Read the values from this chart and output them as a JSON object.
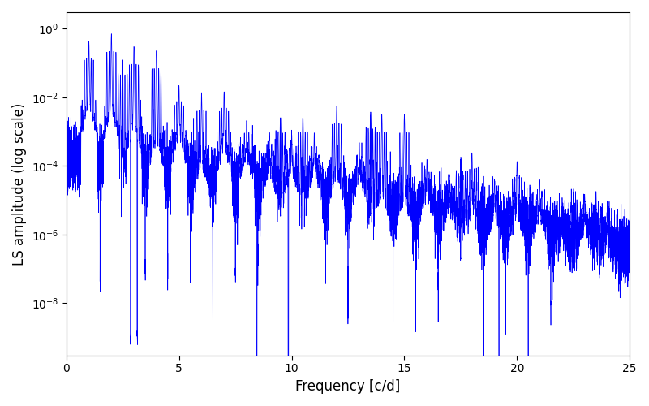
{
  "title": "",
  "xlabel": "Frequency [c/d]",
  "ylabel": "LS amplitude (log scale)",
  "xlim": [
    0,
    25
  ],
  "ylim_bottom": 3e-10,
  "ylim_top": 3.0,
  "line_color": "#0000ff",
  "line_width": 0.5,
  "figsize": [
    8.0,
    5.0
  ],
  "dpi": 100,
  "seed": 7,
  "n_points": 12000,
  "background_color": "#ffffff"
}
